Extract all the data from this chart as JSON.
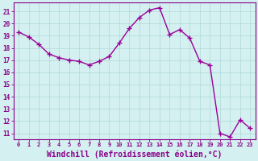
{
  "x": [
    0,
    1,
    2,
    3,
    4,
    5,
    6,
    7,
    8,
    9,
    10,
    11,
    12,
    13,
    14,
    15,
    16,
    17,
    18,
    19,
    20,
    21,
    22,
    23
  ],
  "y": [
    19.3,
    18.9,
    18.3,
    17.5,
    17.2,
    17.0,
    16.9,
    16.6,
    16.9,
    17.3,
    18.4,
    19.6,
    20.5,
    21.1,
    21.3,
    19.1,
    19.5,
    18.8,
    16.9,
    16.6,
    11.0,
    10.7,
    12.1,
    11.4
  ],
  "line_color": "#990099",
  "marker": "+",
  "markersize": 4,
  "linewidth": 1.0,
  "bg_color": "#d4f0f0",
  "grid_color": "#b0d8d8",
  "xlabel": "Windchill (Refroidissement éolien,°C)",
  "xlabel_fontsize": 7,
  "xtick_labels": [
    "0",
    "1",
    "2",
    "3",
    "4",
    "5",
    "6",
    "7",
    "8",
    "9",
    "10",
    "11",
    "12",
    "13",
    "14",
    "15",
    "16",
    "17",
    "18",
    "19",
    "20",
    "21",
    "22",
    "23"
  ],
  "ytick_min": 11,
  "ytick_max": 21,
  "ytick_step": 1,
  "ylim": [
    10.5,
    21.7
  ],
  "xlim": [
    -0.5,
    23.5
  ],
  "spine_color": "#880088",
  "tick_color": "#880088",
  "tick_label_color": "#880088",
  "xlabel_color": "#880088"
}
